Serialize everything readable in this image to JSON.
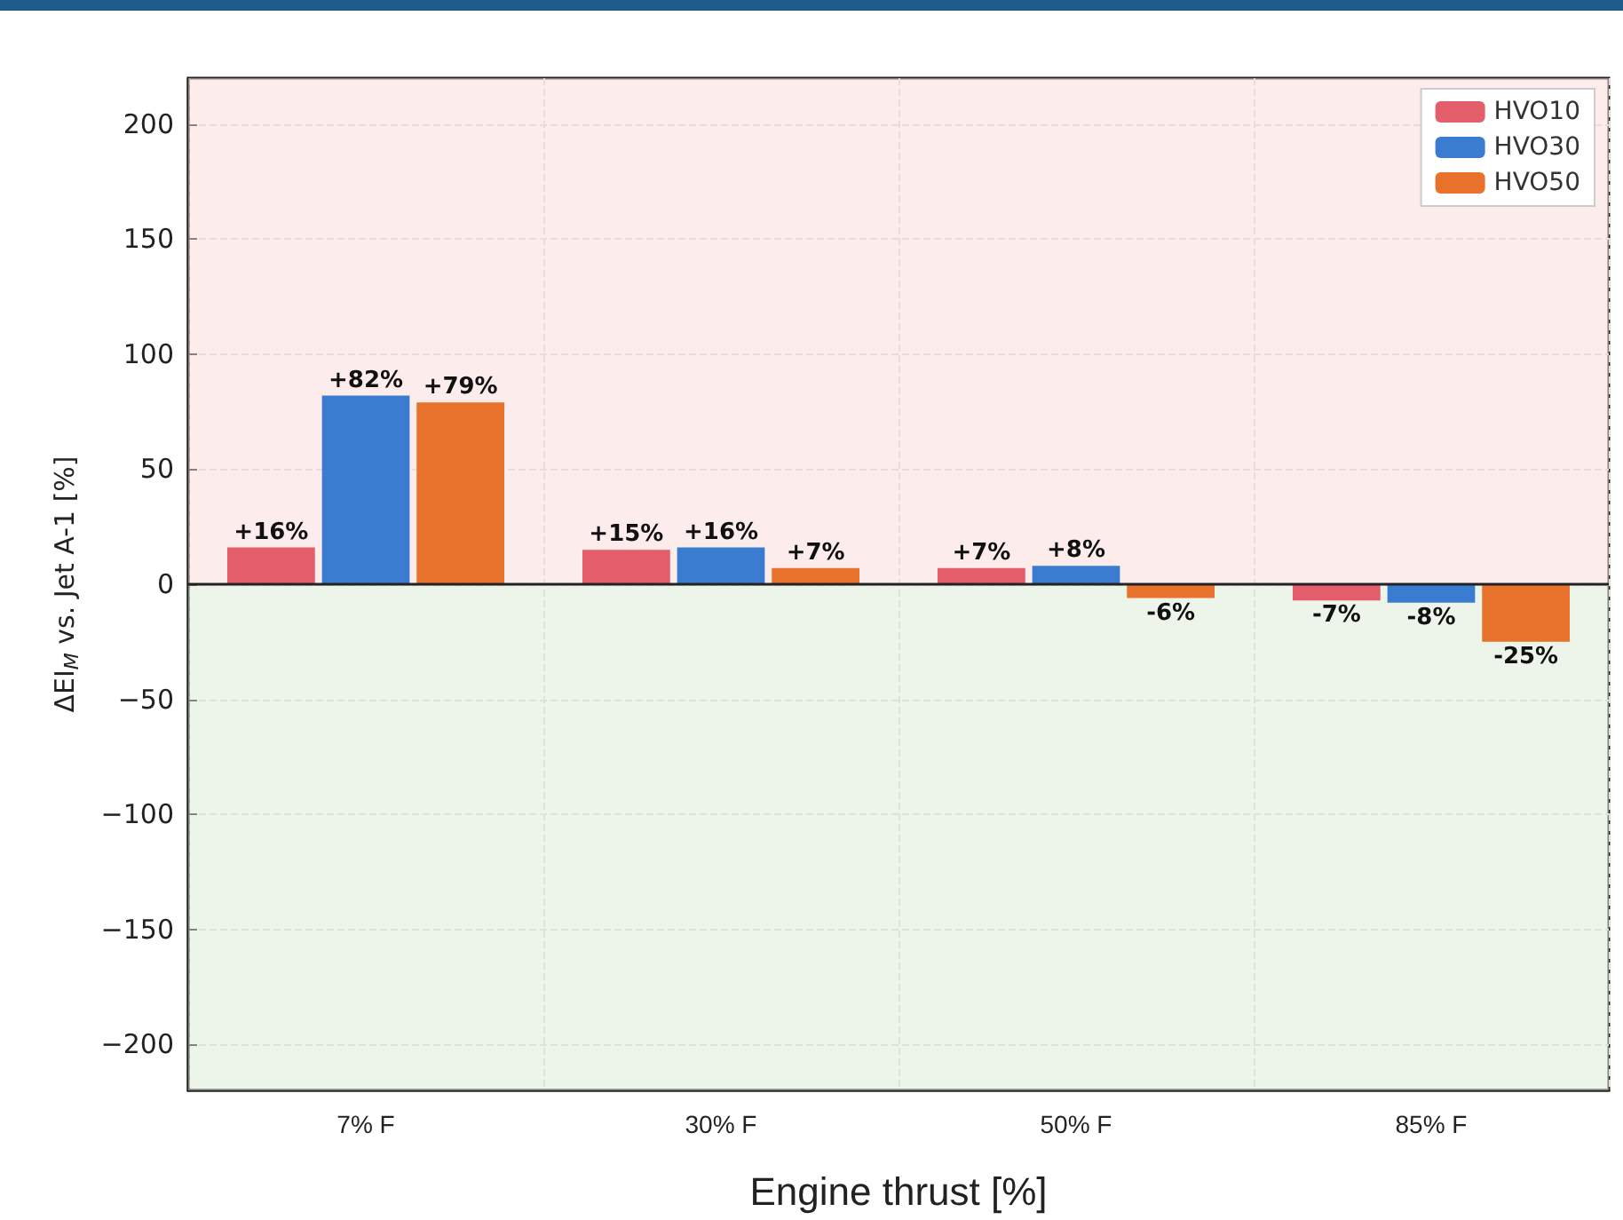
{
  "chart_data": {
    "type": "bar",
    "xlabel": "Engine thrust [%]",
    "ylabel": "ΔEI$_{M}$ vs. Jet A-1 [%]",
    "categories": [
      "7% F",
      "30% F",
      "50% F",
      "85% F"
    ],
    "series": [
      {
        "name": "HVO10",
        "color": "#e35d6a",
        "values": [
          16,
          15,
          7,
          -7
        ],
        "value_labels": [
          "+16%",
          "+15%",
          "+7%",
          "-7%"
        ]
      },
      {
        "name": "HVO30",
        "color": "#3a7dd0",
        "values": [
          82,
          16,
          8,
          -8
        ],
        "value_labels": [
          "+82%",
          "+16%",
          "+8%",
          "-8%"
        ]
      },
      {
        "name": "HVO50",
        "color": "#e8712c",
        "values": [
          79,
          7,
          -6,
          -25
        ],
        "value_labels": [
          "+79%",
          "+7%",
          "-6%",
          "-25%"
        ]
      }
    ],
    "ylim": [
      -220,
      220
    ],
    "yticks": [
      -200,
      -150,
      -100,
      -50,
      0,
      50,
      100,
      150,
      200
    ],
    "ref_lines": [
      {
        "axis": "y",
        "value": 0,
        "color": "#222222"
      }
    ],
    "bands": [
      {
        "axis": "y",
        "from": 0,
        "to": 220,
        "color": "#fbd9d9"
      },
      {
        "axis": "y",
        "from": -220,
        "to": 0,
        "color": "#dcebd8"
      }
    ],
    "grid": true,
    "legend": "top right"
  }
}
